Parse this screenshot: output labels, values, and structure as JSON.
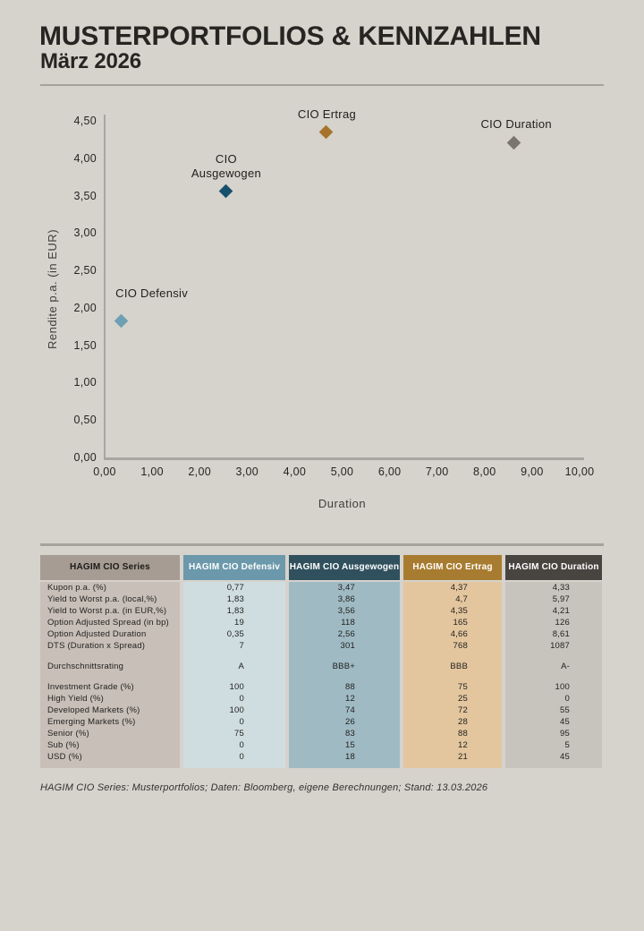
{
  "page": {
    "title": "MUSTERPORTFOLIOS & KENNZAHLEN",
    "subtitle": "März 2026",
    "footnote": "HAGIM CIO Series: Musterportfolios; Daten: Bloomberg, eigene Berechnungen; Stand: 13.03.2026",
    "background": "#d6d2cc"
  },
  "chart_data": {
    "type": "scatter",
    "title": "",
    "xlabel": "Duration",
    "ylabel": "Rendite p.a. (in EUR)",
    "xlim": [
      0,
      10
    ],
    "ylim": [
      0,
      4.5
    ],
    "grid": false,
    "legend": "none (points labeled directly)",
    "x_ticks": [
      {
        "v": 0,
        "label": "0,00"
      },
      {
        "v": 1,
        "label": "1,00"
      },
      {
        "v": 2,
        "label": "2,00"
      },
      {
        "v": 3,
        "label": "3,00"
      },
      {
        "v": 4,
        "label": "4,00"
      },
      {
        "v": 5,
        "label": "5,00"
      },
      {
        "v": 6,
        "label": "6,00"
      },
      {
        "v": 7,
        "label": "7,00"
      },
      {
        "v": 8,
        "label": "8,00"
      },
      {
        "v": 9,
        "label": "9,00"
      },
      {
        "v": 10,
        "label": "10,00"
      }
    ],
    "y_ticks": [
      {
        "v": 0,
        "label": "0,00"
      },
      {
        "v": 0.5,
        "label": "0,50"
      },
      {
        "v": 1,
        "label": "1,00"
      },
      {
        "v": 1.5,
        "label": "1,50"
      },
      {
        "v": 2,
        "label": "2,00"
      },
      {
        "v": 2.5,
        "label": "2,50"
      },
      {
        "v": 3,
        "label": "3,00"
      },
      {
        "v": 3.5,
        "label": "3,50"
      },
      {
        "v": 4,
        "label": "4,00"
      },
      {
        "v": 4.5,
        "label": "4,50"
      }
    ],
    "points": [
      {
        "name": "CIO Defensiv",
        "x": 0.35,
        "y": 1.83,
        "color": "#6f9fb2",
        "label_lines": [
          "CIO Defensiv"
        ]
      },
      {
        "name": "CIO Ausgewogen",
        "x": 2.56,
        "y": 3.56,
        "color": "#174f6d",
        "label_lines": [
          "CIO",
          "Ausgewogen"
        ]
      },
      {
        "name": "CIO Ertrag",
        "x": 4.66,
        "y": 4.35,
        "color": "#a5742a",
        "label_lines": [
          "CIO Ertrag"
        ]
      },
      {
        "name": "CIO Duration",
        "x": 8.61,
        "y": 4.21,
        "color": "#7a756d",
        "label_lines": [
          "CIO Duration"
        ]
      }
    ]
  },
  "table": {
    "columns": [
      {
        "header": "HAGIM CIO Series",
        "header_bg": "#a69c93",
        "header_text": "#1b1a18",
        "body_bg": "#c8bfb8"
      },
      {
        "header": "HAGIM CIO Defensiv",
        "header_bg": "#6b99ab",
        "header_text": "#ffffff",
        "body_bg": "#cfdde0"
      },
      {
        "header": "HAGIM CIO Ausgewogen",
        "header_bg": "#30505d",
        "header_text": "#ffffff",
        "body_bg": "#9fbac3"
      },
      {
        "header": "HAGIM CIO Ertrag",
        "header_bg": "#a87c30",
        "header_text": "#ffffff",
        "body_bg": "#e3c69e"
      },
      {
        "header": "HAGIM CIO Duration",
        "header_bg": "#484440",
        "header_text": "#ffffff",
        "body_bg": "#c7c3bd"
      }
    ],
    "sections": [
      {
        "rows": [
          {
            "label": "Kupon p.a. (%)",
            "values": [
              "0,77",
              "3,47",
              "4,37",
              "4,33"
            ]
          },
          {
            "label": "Yield to Worst p.a. (local,%)",
            "values": [
              "1,83",
              "3,86",
              "4,7",
              "5,97"
            ]
          },
          {
            "label": "Yield to Worst p.a. (in EUR,%)",
            "values": [
              "1,83",
              "3,56",
              "4,35",
              "4,21"
            ]
          },
          {
            "label": "Option Adjusted Spread (in bp)",
            "values": [
              "19",
              "118",
              "165",
              "126"
            ]
          },
          {
            "label": "Option Adjusted Duration",
            "values": [
              "0,35",
              "2,56",
              "4,66",
              "8,61"
            ]
          },
          {
            "label": "DTS (Duration x Spread)",
            "values": [
              "7",
              "301",
              "768",
              "1087"
            ]
          }
        ]
      },
      {
        "rows": [
          {
            "label": "Durchschnittsrating",
            "values": [
              "A",
              "BBB+",
              "BBB",
              "A-"
            ]
          }
        ]
      },
      {
        "rows": [
          {
            "label": "Investment Grade (%)",
            "values": [
              "100",
              "88",
              "75",
              "100"
            ]
          },
          {
            "label": "High Yield (%)",
            "values": [
              "0",
              "12",
              "25",
              "0"
            ]
          },
          {
            "label": "Developed Markets (%)",
            "values": [
              "100",
              "74",
              "72",
              "55"
            ]
          },
          {
            "label": "Emerging Markets (%)",
            "values": [
              "0",
              "26",
              "28",
              "45"
            ]
          },
          {
            "label": "Senior (%)",
            "values": [
              "75",
              "83",
              "88",
              "95"
            ]
          },
          {
            "label": "Sub (%)",
            "values": [
              "0",
              "15",
              "12",
              "5"
            ]
          },
          {
            "label": "USD (%)",
            "values": [
              "0",
              "18",
              "21",
              "45"
            ]
          }
        ]
      }
    ]
  }
}
